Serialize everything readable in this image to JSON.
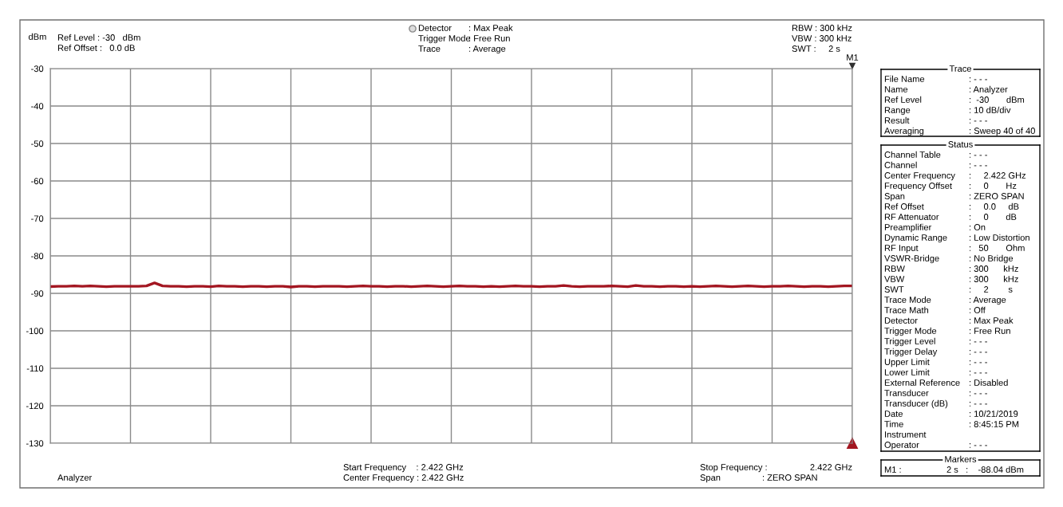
{
  "chart_data": [
    {
      "type": "line",
      "categories": [
        null,
        null,
        null,
        null,
        null,
        null,
        null,
        null,
        null,
        null,
        null,
        null,
        null,
        null,
        null,
        null,
        null,
        null,
        null,
        null,
        null,
        null,
        null,
        null,
        null,
        null,
        null,
        null,
        null,
        null,
        null,
        null,
        null,
        null,
        null,
        null,
        null,
        null,
        null,
        null,
        null,
        null,
        null,
        null,
        null,
        null,
        null,
        null,
        null,
        null,
        null,
        null,
        null,
        null,
        null,
        null,
        null,
        null,
        null,
        null,
        null,
        null,
        null,
        null,
        null,
        null,
        null,
        null,
        null,
        null,
        null,
        null,
        null,
        null,
        null,
        null,
        null,
        null,
        null,
        null,
        null,
        null,
        null,
        null,
        null,
        null,
        null,
        null,
        null,
        null,
        null,
        null,
        null,
        null,
        null,
        null,
        null,
        null,
        null,
        null,
        null
      ],
      "series": [
        {
          "color": "#a31621",
          "values": [
            -88.2,
            -88.1,
            -88.1,
            -88.0,
            -88.1,
            -88.0,
            -88.1,
            -88.2,
            -88.1,
            -88.1,
            -88.1,
            -88.1,
            -88.0,
            -87.2,
            -88.0,
            -88.1,
            -88.1,
            -88.2,
            -88.1,
            -88.1,
            -88.2,
            -88.0,
            -88.1,
            -88.1,
            -88.2,
            -88.1,
            -88.1,
            -88.2,
            -88.1,
            -88.1,
            -88.3,
            -88.1,
            -88.1,
            -88.2,
            -88.1,
            -88.1,
            -88.1,
            -88.2,
            -88.1,
            -88.0,
            -88.1,
            -88.1,
            -88.2,
            -88.1,
            -88.1,
            -88.2,
            -88.1,
            -88.0,
            -88.1,
            -88.2,
            -88.1,
            -88.0,
            -88.1,
            -88.1,
            -88.2,
            -88.1,
            -88.2,
            -88.1,
            -88.0,
            -88.1,
            -88.1,
            -88.2,
            -88.1,
            -88.1,
            -87.9,
            -88.1,
            -88.2,
            -88.1,
            -88.1,
            -88.1,
            -88.0,
            -88.1,
            -88.2,
            -87.9,
            -88.1,
            -88.1,
            -88.2,
            -88.1,
            -88.1,
            -88.2,
            -88.1,
            -88.2,
            -88.1,
            -88.0,
            -88.1,
            -88.2,
            -88.1,
            -88.0,
            -88.1,
            -88.2,
            -88.1,
            -88.1,
            -88.0,
            -88.1,
            -88.2,
            -88.1,
            -88.1,
            -88.2,
            -88.1,
            -88.0,
            -88.0
          ]
        }
      ],
      "ylim": [
        -130,
        -30
      ],
      "yticks": [
        -30,
        -40,
        -50,
        -60,
        -70,
        -80,
        -90,
        -100,
        -110,
        -120,
        -130
      ],
      "ylabel": "dBm",
      "grid": true,
      "tick_labels": "y",
      "annotations": [
        "Ref Level : -30   dBm",
        "Ref Offset :   0.0 dB",
        "Detector",
        ": Max Peak",
        "Trigger Mode",
        ": Free Run",
        "Trace",
        ": Average",
        "RBW : 300 kHz",
        "VBW : 300 kHz",
        "SWT :     2 s",
        "Analyzer",
        "Start Frequency    : 2.422 GHz",
        "Center Frequency : 2.422 GHz",
        "Stop Frequency :",
        "2.422 GHz",
        "Span",
        ": ZERO SPAN",
        "M1"
      ]
    },
    {
      "type": "other",
      "title": "Trace",
      "annotations": [
        "File Name\t: - - -",
        "Name\t: Analyzer",
        "Ref Level\t:  -30       dBm",
        "Range\t: 10 dB/div",
        "Result\t: - - -",
        "Averaging\t: Sweep 40 of 40"
      ]
    },
    {
      "type": "other",
      "title": "Status",
      "annotations": [
        "Channel Table\t: - - -",
        "Channel\t: - - -",
        "Center Frequency\t:     2.422 GHz",
        "Frequency Offset\t:     0       Hz",
        "Span\t: ZERO SPAN",
        "Ref Offset\t:     0.0     dB",
        "RF Attenuator\t:     0       dB",
        "Preamplifier\t: On",
        "Dynamic Range\t: Low Distortion",
        "RF Input\t:   50       Ohm",
        "VSWR-Bridge\t: No Bridge",
        "RBW\t: 300      kHz",
        "VBW\t: 300      kHz",
        "SWT\t:     2        s",
        "Trace Mode\t: Average",
        "Trace Math\t: Off",
        "Detector\t: Max Peak",
        "Trigger Mode\t: Free Run",
        "Trigger Level\t: - - -",
        "Trigger Delay\t: - - -",
        "Upper Limit\t: - - -",
        "Lower Limit\t: - - -",
        "External Reference\t: Disabled",
        "Transducer\t: - - -",
        "Transducer (dB)\t: - - -",
        "Date\t: 10/21/2019",
        "Time\t: 8:45:15 PM",
        "Instrument",
        "Operator\t: - - -"
      ]
    },
    {
      "type": "other",
      "title": "Markers",
      "annotations": [
        "M1 :\t2 s   :    -88.04 dBm"
      ]
    }
  ]
}
